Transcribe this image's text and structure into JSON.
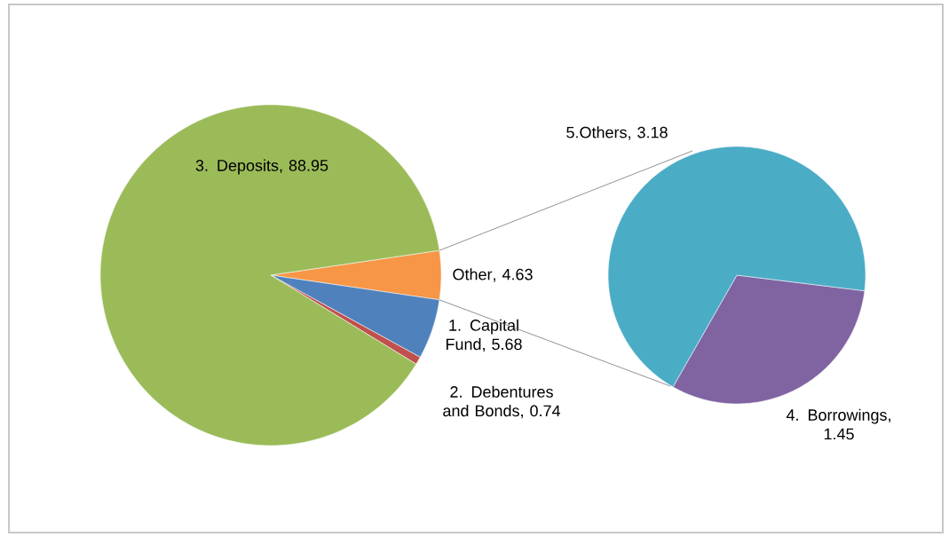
{
  "chart_data": [
    {
      "type": "pie",
      "categories": [
        "Other",
        "1. Capital Fund",
        "2. Debentures and Bonds",
        "3. Deposits"
      ],
      "values": [
        4.63,
        5.68,
        0.74,
        88.95
      ],
      "colors": [
        "#f79646",
        "#4f81bd",
        "#c0504d",
        "#9bbb59"
      ],
      "value_labels": [
        ", 4.63",
        ", 5.68",
        ", 0.74",
        ", 88.95"
      ]
    },
    {
      "type": "pie",
      "categories": [
        "4. Borrowings",
        "5.Others"
      ],
      "values": [
        1.45,
        3.18
      ],
      "colors": [
        "#8064a2",
        "#4bacc6"
      ],
      "value_labels": [
        ", 1.45",
        ", 3.18"
      ]
    }
  ]
}
